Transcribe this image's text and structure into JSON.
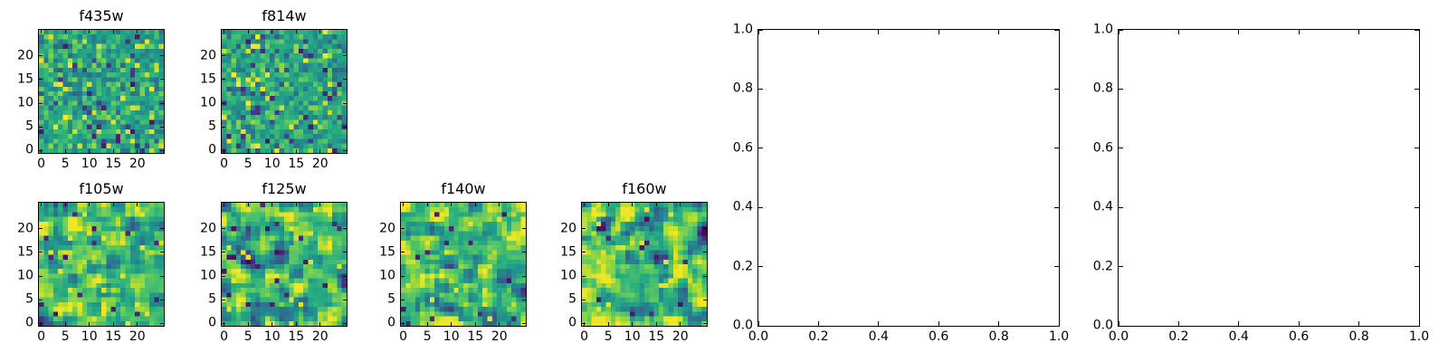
{
  "figure": {
    "background": "#ffffff",
    "axis_color": "#000000",
    "colormap": "viridis",
    "viridis_stops": [
      [
        0.0,
        "#440154"
      ],
      [
        0.125,
        "#472d7b"
      ],
      [
        0.25,
        "#3b528b"
      ],
      [
        0.375,
        "#2c728e"
      ],
      [
        0.5,
        "#21918c"
      ],
      [
        0.625,
        "#28ae80"
      ],
      [
        0.75,
        "#5ec962"
      ],
      [
        0.875,
        "#addc30"
      ],
      [
        1.0,
        "#fde725"
      ]
    ]
  },
  "chart_data": [
    {
      "type": "heatmap",
      "title": "f435w",
      "grid_size": 26,
      "pattern": "random-noise",
      "seed": 435,
      "smooth": false,
      "colormap": "viridis",
      "x_ticks": [
        0,
        5,
        10,
        15,
        20
      ],
      "y_ticks": [
        0,
        5,
        10,
        15,
        20
      ]
    },
    {
      "type": "heatmap",
      "title": "f814w",
      "grid_size": 26,
      "pattern": "random-noise",
      "seed": 814,
      "smooth": false,
      "colormap": "viridis",
      "x_ticks": [
        0,
        5,
        10,
        15,
        20
      ],
      "y_ticks": [
        0,
        5,
        10,
        15,
        20
      ]
    },
    {
      "type": "heatmap",
      "title": "f105w",
      "grid_size": 26,
      "pattern": "random-noise-smooth",
      "seed": 105,
      "smooth": true,
      "colormap": "viridis",
      "x_ticks": [
        0,
        5,
        10,
        15,
        20
      ],
      "y_ticks": [
        0,
        5,
        10,
        15,
        20
      ]
    },
    {
      "type": "heatmap",
      "title": "f125w",
      "grid_size": 26,
      "pattern": "random-noise-smooth",
      "seed": 125,
      "smooth": true,
      "colormap": "viridis",
      "x_ticks": [
        0,
        5,
        10,
        15,
        20
      ],
      "y_ticks": [
        0,
        5,
        10,
        15,
        20
      ]
    },
    {
      "type": "heatmap",
      "title": "f140w",
      "grid_size": 26,
      "pattern": "random-noise-smooth",
      "seed": 140,
      "smooth": true,
      "colormap": "viridis",
      "x_ticks": [
        0,
        5,
        10,
        15,
        20
      ],
      "y_ticks": [
        0,
        5,
        10,
        15,
        20
      ]
    },
    {
      "type": "heatmap",
      "title": "f160w",
      "grid_size": 26,
      "pattern": "random-noise-smooth",
      "seed": 160,
      "smooth": true,
      "colormap": "viridis",
      "x_ticks": [
        0,
        5,
        10,
        15,
        20
      ],
      "y_ticks": [
        0,
        5,
        10,
        15,
        20
      ]
    },
    {
      "type": "empty-axes",
      "x_range": [
        0,
        1
      ],
      "y_range": [
        0,
        1
      ],
      "x_tick_labels": [
        "0.0",
        "0.2",
        "0.4",
        "0.6",
        "0.8",
        "1.0"
      ],
      "y_tick_labels": [
        "0.0",
        "0.2",
        "0.4",
        "0.6",
        "0.8",
        "1.0"
      ]
    },
    {
      "type": "empty-axes",
      "x_range": [
        0,
        1
      ],
      "y_range": [
        0,
        1
      ],
      "x_tick_labels": [
        "0.0",
        "0.2",
        "0.4",
        "0.6",
        "0.8",
        "1.0"
      ],
      "y_tick_labels": [
        "0.0",
        "0.2",
        "0.4",
        "0.6",
        "0.8",
        "1.0"
      ]
    }
  ]
}
